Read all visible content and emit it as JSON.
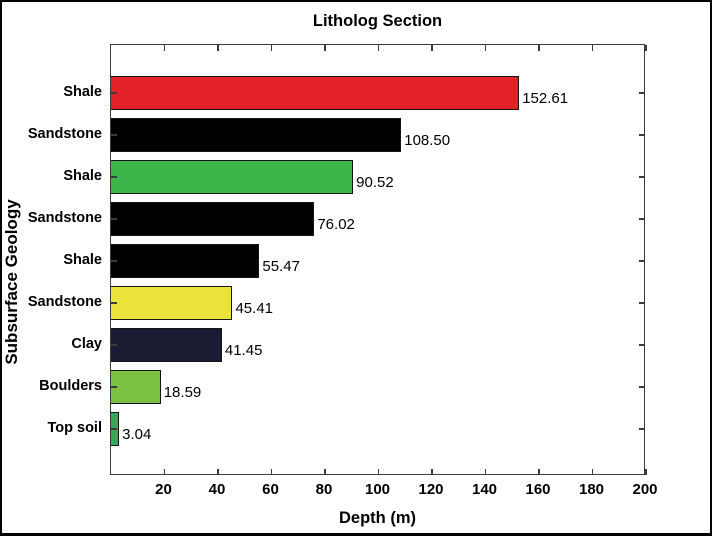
{
  "figure": {
    "title": "Litholog Section",
    "xlabel": "Depth (m)",
    "ylabel": "Subsurface Geology"
  },
  "chart_data": {
    "type": "bar",
    "orientation": "horizontal",
    "title": "Litholog Section",
    "xlabel": "Depth (m)",
    "ylabel": "Subsurface Geology",
    "xlim": [
      0,
      200
    ],
    "x_ticks": [
      "20",
      "40",
      "60",
      "80",
      "100",
      "120",
      "140",
      "160",
      "180",
      "200"
    ],
    "grid": false,
    "legend": false,
    "categories": [
      "Shale",
      "Sandstone",
      "Shale",
      "Sandstone",
      "Shale",
      "Sandstone",
      "Clay",
      "Boulders",
      "Top soil"
    ],
    "values": [
      152.61,
      108.5,
      90.52,
      76.02,
      55.47,
      45.41,
      41.45,
      18.59,
      3.04
    ],
    "bars": [
      {
        "category": "Shale",
        "value": 152.61,
        "label": "152.61",
        "color": "#e32128"
      },
      {
        "category": "Sandstone",
        "value": 108.5,
        "label": "108.50",
        "color": "#000000"
      },
      {
        "category": "Shale",
        "value": 90.52,
        "label": "90.52",
        "color": "#3cb54a"
      },
      {
        "category": "Sandstone",
        "value": 76.02,
        "label": "76.02",
        "color": "#000000"
      },
      {
        "category": "Shale",
        "value": 55.47,
        "label": "55.47",
        "color": "#000000"
      },
      {
        "category": "Sandstone",
        "value": 45.41,
        "label": "45.41",
        "color": "#e9e33c"
      },
      {
        "category": "Clay",
        "value": 41.45,
        "label": "41.45",
        "color": "#1b1b33"
      },
      {
        "category": "Boulders",
        "value": 18.59,
        "label": "18.59",
        "color": "#7cc242"
      },
      {
        "category": "Top soil",
        "value": 3.04,
        "label": "3.04",
        "color": "#36a759"
      }
    ],
    "colors": {
      "axis": "#3c3c3c",
      "background": "#ffffff",
      "figure_border": "#000000",
      "text": "#000000"
    }
  }
}
